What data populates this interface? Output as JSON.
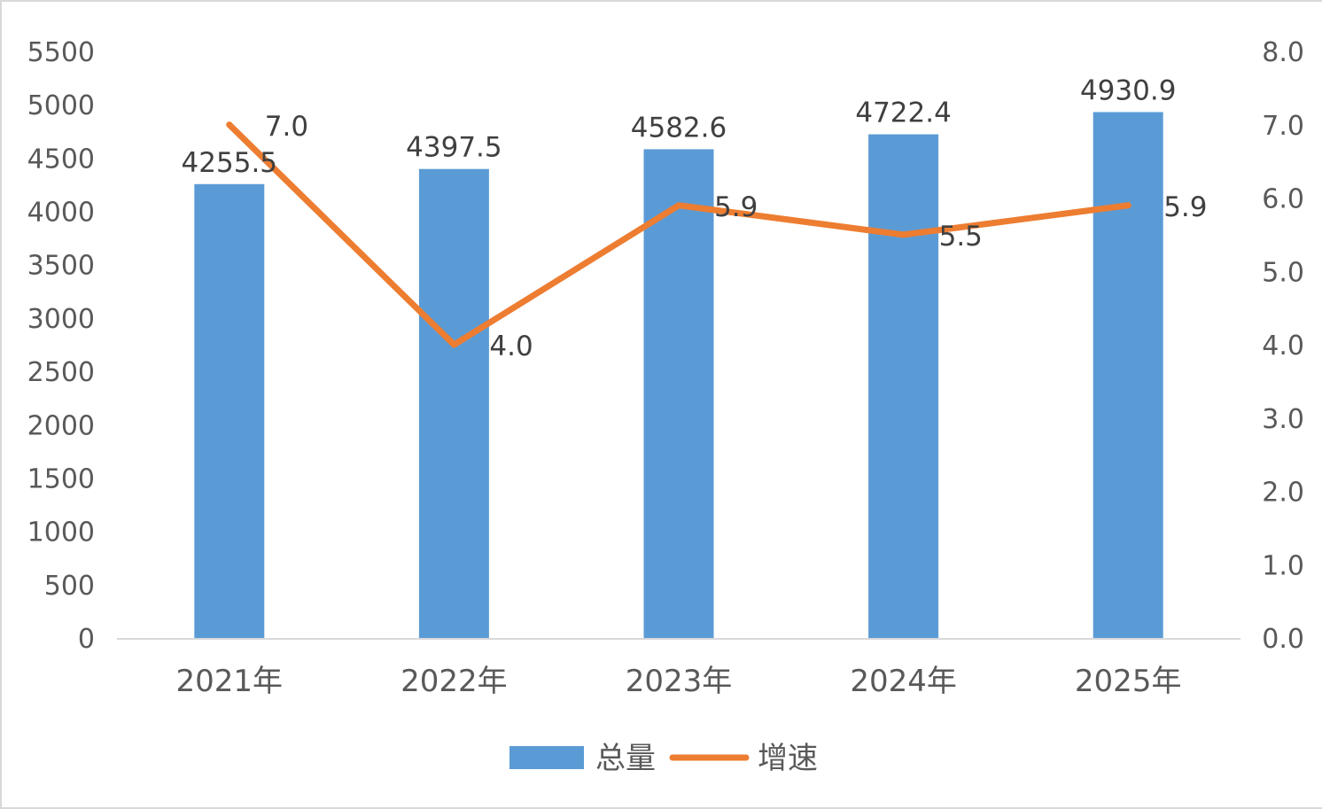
{
  "chart_data": {
    "type": "bar",
    "categories": [
      "2021年",
      "2022年",
      "2023年",
      "2024年",
      "2025年"
    ],
    "series": [
      {
        "name": "总量",
        "type": "bar",
        "axis": "left",
        "color": "#5b9bd5",
        "values": [
          4255.5,
          4397.5,
          4582.6,
          4722.4,
          4930.9
        ],
        "labels": [
          "4255.5",
          "4397.5",
          "4582.6",
          "4722.4",
          "4930.9"
        ]
      },
      {
        "name": "增速",
        "type": "line",
        "axis": "right",
        "color": "#ed7d31",
        "values": [
          7.0,
          4.0,
          5.9,
          5.5,
          5.9
        ],
        "labels": [
          "7.0",
          "4.0",
          "5.9",
          "5.5",
          "5.9"
        ]
      }
    ],
    "y_left": {
      "min": 0,
      "max": 5500,
      "step": 500,
      "tick_labels": [
        "0",
        "500",
        "1000",
        "1500",
        "2000",
        "2500",
        "3000",
        "3500",
        "4000",
        "4500",
        "5000",
        "5500"
      ]
    },
    "y_right": {
      "min": 0,
      "max": 8,
      "step": 1,
      "tick_labels": [
        "0.0",
        "1.0",
        "2.0",
        "3.0",
        "4.0",
        "5.0",
        "6.0",
        "7.0",
        "8.0"
      ]
    },
    "grid": false,
    "legend": {
      "position": "bottom",
      "items": [
        {
          "label": "总量",
          "color": "#5b9bd5",
          "kind": "box"
        },
        {
          "label": "增速",
          "color": "#ed7d31",
          "kind": "line"
        }
      ]
    }
  }
}
